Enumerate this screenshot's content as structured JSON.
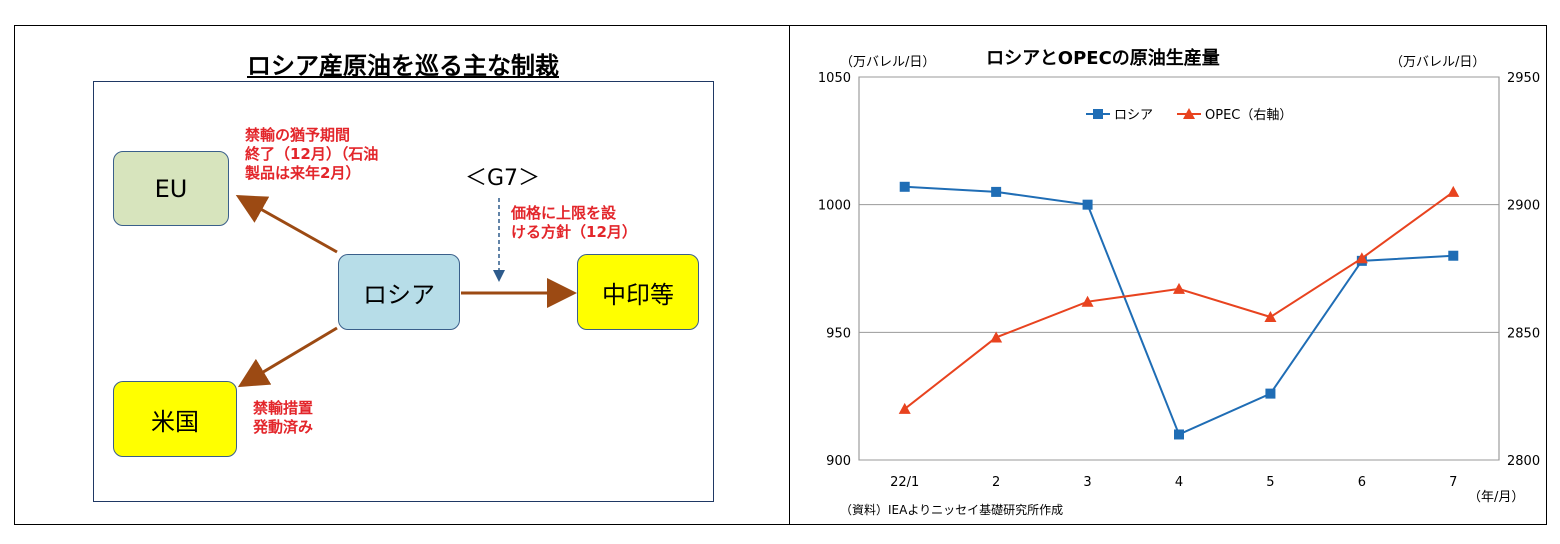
{
  "diagram": {
    "title": "ロシア産原油を巡る主な制裁",
    "nodes": {
      "russia": "ロシア",
      "eu": "EU",
      "usa": "米国",
      "china_india": "中印等"
    },
    "g7_label": "＜G7＞",
    "notes": {
      "eu": [
        "禁輸の猶予期間",
        "終了（12月）（石油",
        "製品は来年2月）"
      ],
      "g7": [
        "価格に上限を設",
        "ける方針（12月）"
      ],
      "usa": [
        "禁輸措置",
        "発動済み"
      ]
    },
    "colors": {
      "russia": "#b7dde8",
      "eu": "#d7e4bd",
      "usa": "#ffff00",
      "china_india": "#ffff00",
      "arrow": "#9c4a13",
      "note": "#e3262b"
    }
  },
  "chart_data": {
    "type": "line",
    "title": "ロシアとOPECの原油生産量",
    "left_unit": "（万バレル/日）",
    "right_unit": "（万バレル/日）",
    "x_unit": "（年/月）",
    "source": "（資料）IEAよりニッセイ基礎研究所作成",
    "categories": [
      "22/1",
      "2",
      "3",
      "4",
      "5",
      "6",
      "7"
    ],
    "y_left": {
      "min": 900,
      "max": 1050,
      "ticks": [
        900,
        950,
        1000,
        1050
      ]
    },
    "y_right": {
      "min": 2800,
      "max": 2950,
      "ticks": [
        2800,
        2850,
        2900,
        2950
      ]
    },
    "grid": true,
    "legend_position": "top-center",
    "series": [
      {
        "name": "ロシア",
        "axis": "left",
        "color": "#1f6db5",
        "marker": "square",
        "values": [
          1007,
          1005,
          1000,
          910,
          926,
          978,
          980
        ]
      },
      {
        "name": "OPEC（右軸）",
        "axis": "right",
        "color": "#e8431f",
        "marker": "triangle",
        "values": [
          2820,
          2848,
          2862,
          2867,
          2856,
          2879,
          2905
        ]
      }
    ]
  }
}
